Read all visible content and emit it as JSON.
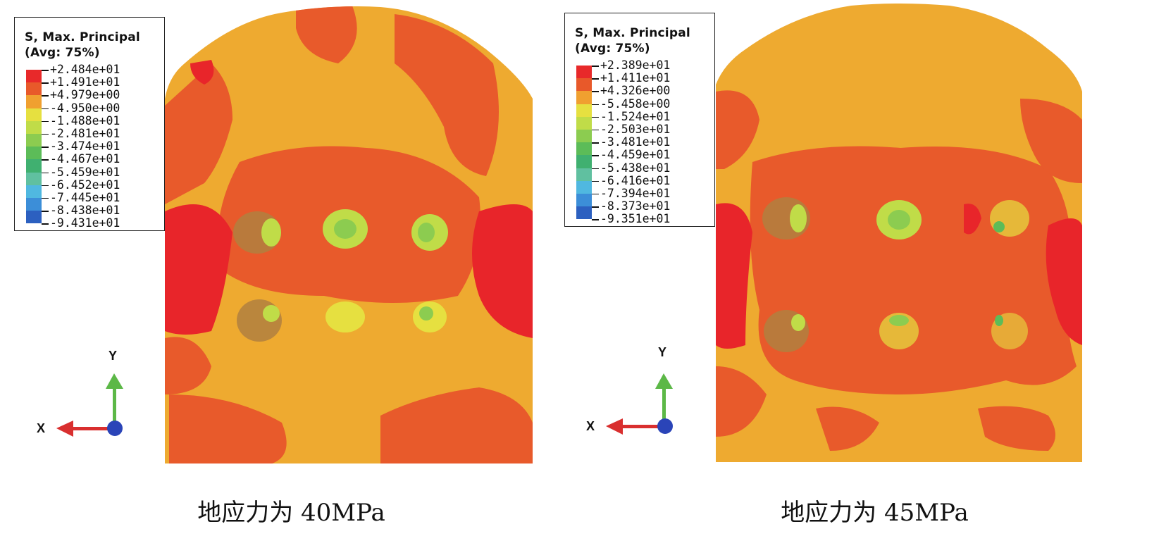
{
  "panels": [
    {
      "id": "left",
      "caption": "地应力为 40MPa",
      "legend": {
        "title_line1": "S, Max. Principal",
        "title_line2": "(Avg: 75%)",
        "values": [
          "+2.484e+01",
          "+1.491e+01",
          "+4.979e+00",
          "-4.950e+00",
          "-1.488e+01",
          "-2.481e+01",
          "-3.474e+01",
          "-4.467e+01",
          "-5.459e+01",
          "-6.452e+01",
          "-7.445e+01",
          "-8.438e+01",
          "-9.431e+01"
        ]
      },
      "axes": {
        "y_label": "Y",
        "x_label": "X"
      }
    },
    {
      "id": "right",
      "caption": "地应力为 45MPa",
      "legend": {
        "title_line1": "S, Max. Principal",
        "title_line2": "(Avg: 75%)",
        "values": [
          "+2.389e+01",
          "+1.411e+01",
          "+4.326e+00",
          "-5.458e+00",
          "-1.524e+01",
          "-2.503e+01",
          "-3.481e+01",
          "-4.459e+01",
          "-5.438e+01",
          "-6.416e+01",
          "-7.394e+01",
          "-8.373e+01",
          "-9.351e+01"
        ]
      },
      "axes": {
        "y_label": "Y",
        "x_label": "X"
      }
    }
  ],
  "colors": {
    "contour_bands": [
      "#e8292a",
      "#e8592a",
      "#f0a030",
      "#e6e040",
      "#c0dc48",
      "#8ccc50",
      "#5cbc58",
      "#40b070",
      "#60c0a0",
      "#50b8e0",
      "#3c8ed8",
      "#2c60c0",
      "#2a3aa0"
    ],
    "model_base": "#eeaa30",
    "high_band": "#e85a2b",
    "peak_band": "#e8252a",
    "axis_y": "#5cb847",
    "axis_x": "#d92f2f",
    "axis_origin": "#2a44b8"
  }
}
